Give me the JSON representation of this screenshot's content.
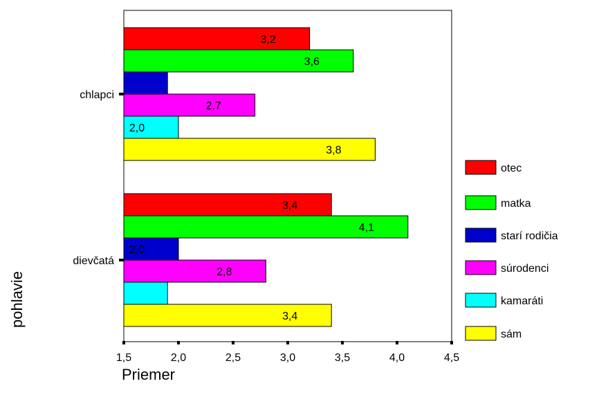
{
  "chart_data": {
    "type": "bar",
    "orientation": "horizontal",
    "categories": [
      "chlapci",
      "dievčatá"
    ],
    "series": [
      {
        "name": "otec",
        "color": "#ff0000",
        "values": [
          3.2,
          3.4
        ],
        "labels": [
          "3,2",
          "3,4"
        ]
      },
      {
        "name": "matka",
        "color": "#00ff00",
        "values": [
          3.6,
          4.1
        ],
        "labels": [
          "3,6",
          "4,1"
        ]
      },
      {
        "name": "starí rodičia",
        "color": "#0000cc",
        "values": [
          1.9,
          2.0
        ],
        "labels": [
          "",
          "2,0"
        ]
      },
      {
        "name": "súrodenci",
        "color": "#ff00ff",
        "values": [
          2.7,
          2.8
        ],
        "labels": [
          "2,7",
          "2,8"
        ]
      },
      {
        "name": "kamaráti",
        "color": "#00ffff",
        "values": [
          2.0,
          1.9
        ],
        "labels": [
          "2,0",
          ""
        ]
      },
      {
        "name": "sám",
        "color": "#ffff00",
        "values": [
          3.8,
          3.4
        ],
        "labels": [
          "3,8",
          "3,4"
        ]
      }
    ],
    "xlabel": "Priemer",
    "ylabel": "pohlavie",
    "xlim": [
      1.5,
      4.5
    ],
    "xticks": [
      1.5,
      2.0,
      2.5,
      3.0,
      3.5,
      4.0,
      4.5
    ],
    "xtick_labels": [
      "1,5",
      "2,0",
      "2,5",
      "3,0",
      "3,5",
      "4,0",
      "4,5"
    ],
    "grid": false,
    "legend_position": "right"
  }
}
